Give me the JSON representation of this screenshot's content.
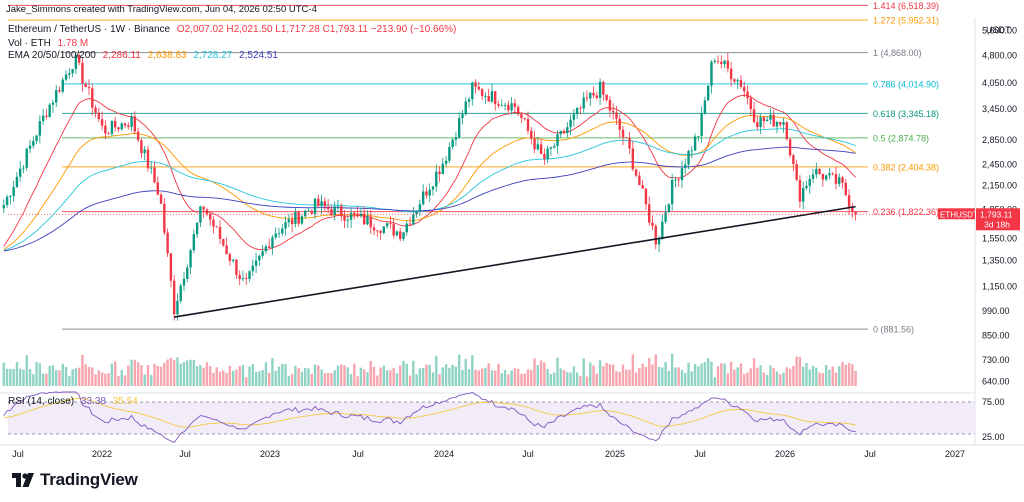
{
  "credit": "Jake_Simmons created with TradingView.com, Jun 04, 2026 02:50 UTC-4",
  "brand": "TradingView",
  "header": {
    "symbol": "Ethereum / TetherUS · 1W · Binance",
    "ohlc": "O2,007.02  H2,021.50  L1,717.28  C1,793.11  −213.90 (−10.66%)",
    "vol_label": "Vol · ETH",
    "vol_value": "1.78 M",
    "ema_label": "EMA 20/50/100/200",
    "ema_values": [
      "2,286.11",
      "2,638.83",
      "2,728.27",
      "2,524.51"
    ],
    "rsi_label": "RSI (14, close)",
    "rsi_values": [
      "33.38",
      "35.54"
    ]
  },
  "price_axis": {
    "unit": "USDT",
    "ticks": [
      5600,
      4800,
      4050,
      3450,
      2850,
      2450,
      2150,
      1850,
      1550,
      1350,
      1150,
      990,
      850,
      730,
      640
    ],
    "tick_labels": [
      "5,600.00",
      "4,800.00",
      "4,050.00",
      "3,450.00",
      "2,850.00",
      "2,450.00",
      "2,150.00",
      "1,850.00",
      "1,550.00",
      "1,350.00",
      "1,150.00",
      "990.00",
      "850.00",
      "730.00",
      "640.00"
    ],
    "current_tag": "ETHUSDT",
    "current_price": "1,793.11",
    "countdown": "3d 18h"
  },
  "rsi_axis": {
    "ticks": [
      "75.00",
      "25.00"
    ]
  },
  "time_axis": {
    "labels": [
      "Jul",
      "2022",
      "Jul",
      "2023",
      "Jul",
      "2024",
      "Jul",
      "2025",
      "Jul",
      "2026",
      "Jul",
      "2027"
    ]
  },
  "fib_levels": [
    {
      "label": "1.414 (6,518.39)",
      "color": "#f23645"
    },
    {
      "label": "1.272 (5,952.31)",
      "color": "#ff9800"
    },
    {
      "label": "1 (4,868.00)",
      "color": "#787b86"
    },
    {
      "label": "0.786 (4,014.90)",
      "color": "#00bcd4"
    },
    {
      "label": "0.618 (3,345.18)",
      "color": "#089981"
    },
    {
      "label": "0.5 (2,874.78)",
      "color": "#4caf50"
    },
    {
      "label": "0.382 (2,404.38)",
      "color": "#ff9800"
    },
    {
      "label": "0.236 (1,822.36)",
      "color": "#f23645"
    },
    {
      "label": "0 (881.56)",
      "color": "#787b86"
    }
  ],
  "colors": {
    "up": "#089981",
    "down": "#f23645",
    "ema20": "#f23645",
    "ema50": "#ff9800",
    "ema100": "#26c6da",
    "ema200": "#3f3fbf",
    "rsi": "#7e57c2",
    "rsi_ma": "#f5c842"
  },
  "chart_data": {
    "type": "line",
    "title": "Ethereum / TetherUS · 1W · Binance",
    "xlabel": "",
    "ylabel": "USDT",
    "scale": "log",
    "ylim": [
      600,
      6000
    ],
    "x": [
      "2021-06",
      "2021-09",
      "2021-11",
      "2022-01",
      "2022-03",
      "2022-05",
      "2022-06",
      "2022-08",
      "2022-11",
      "2023-01",
      "2023-04",
      "2023-06",
      "2023-10",
      "2024-01",
      "2024-03",
      "2024-06",
      "2024-08",
      "2024-11",
      "2024-12",
      "2025-02",
      "2025-04",
      "2025-05",
      "2025-07",
      "2025-08",
      "2025-10",
      "2025-11",
      "2026-01",
      "2026-02",
      "2026-03",
      "2026-05",
      "2026-06"
    ],
    "series": [
      {
        "name": "ETHUSDT",
        "values": [
          1900,
          3400,
          4700,
          3000,
          3200,
          2000,
          1000,
          1900,
          1150,
          1600,
          1900,
          1800,
          1600,
          2500,
          3900,
          3500,
          2500,
          3600,
          3900,
          2700,
          1500,
          2100,
          3000,
          4800,
          4000,
          3200,
          3200,
          2000,
          2350,
          2150,
          1793
        ]
      }
    ],
    "fibonacci": {
      "anchor_low": 881.56,
      "anchor_high": 4868.0,
      "levels": [
        {
          "ratio": 1.414,
          "price": 6518.39
        },
        {
          "ratio": 1.272,
          "price": 5952.31
        },
        {
          "ratio": 1,
          "price": 4868.0
        },
        {
          "ratio": 0.786,
          "price": 4014.9
        },
        {
          "ratio": 0.618,
          "price": 3345.18
        },
        {
          "ratio": 0.5,
          "price": 2874.78
        },
        {
          "ratio": 0.382,
          "price": 2404.38
        },
        {
          "ratio": 0.236,
          "price": 1822.36
        },
        {
          "ratio": 0,
          "price": 881.56
        }
      ]
    },
    "trendline": {
      "from": {
        "x": "2022-06",
        "price": 950
      },
      "to": {
        "x": "2026-06",
        "price": 1880
      }
    },
    "rsi_ylim": [
      0,
      100
    ],
    "legend": "none",
    "grid": false
  }
}
